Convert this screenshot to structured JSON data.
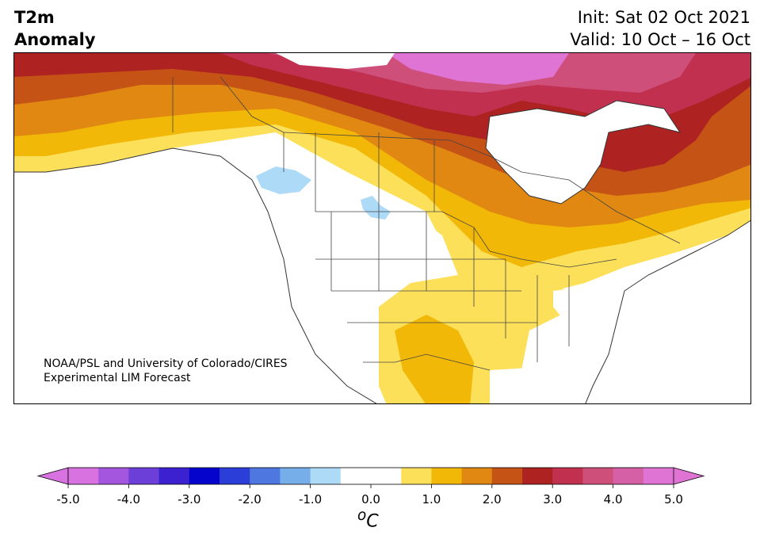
{
  "header": {
    "variable": "T2m",
    "subtitle": "Anomaly",
    "init": "Init: Sat 02 Oct 2021",
    "valid": "Valid: 10 Oct – 16 Oct"
  },
  "credit": {
    "line1": "NOAA/PSL and University of Colorado/CIRES",
    "line2": "Experimental LIM Forecast"
  },
  "colorbar": {
    "unit": "oC",
    "unit_base": "C",
    "unit_sup": "o",
    "min": -5.0,
    "max": 5.0,
    "step": 0.5,
    "ticks": [
      "-5.0",
      "-4.0",
      "-3.0",
      "-2.0",
      "-1.0",
      "0.0",
      "1.0",
      "2.0",
      "3.0",
      "4.0",
      "5.0"
    ],
    "colors": [
      "#d772e0",
      "#a556de",
      "#6c3fd8",
      "#3b21cf",
      "#0404cc",
      "#2c3ed8",
      "#4e78e0",
      "#75aee8",
      "#addaf7",
      "#ffffff",
      "#ffffff",
      "#fde05a",
      "#f2b807",
      "#e08812",
      "#c65316",
      "#ae2222",
      "#c23050",
      "#ce4f7a",
      "#d660a6",
      "#e074d4"
    ],
    "extend_low_color": "#d772e0",
    "extend_high_color": "#e074d4"
  },
  "map": {
    "region": "North America",
    "projection": "lambert-conformal"
  }
}
